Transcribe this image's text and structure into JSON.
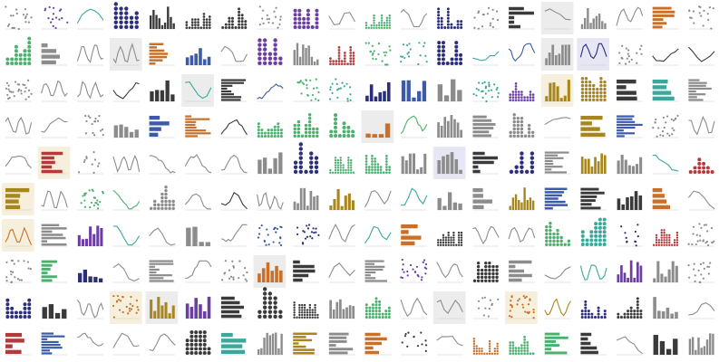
{
  "chart_data": {
    "type": "mosaic",
    "grid": {
      "rows": 10,
      "cols": 20
    },
    "palette": {
      "purple": "#6b3fa0",
      "green": "#4caf6e",
      "orange": "#c8702a",
      "blue": "#3b5aa8",
      "teal": "#3aa89a",
      "gray": "#8c8c8c",
      "dark": "#3a3a3a",
      "gold": "#a8861e",
      "red": "#b23a3a",
      "navy": "#2b2f7a",
      "cream": "#f6efdc",
      "lightgray": "#ececec",
      "lavender": "#e6e6f5"
    },
    "tiles": [
      {
        "type": "scatter",
        "color": "gray",
        "seed": 1
      },
      {
        "type": "scatter",
        "color": "purple",
        "seed": 2
      },
      {
        "type": "line",
        "color": "teal",
        "seed": 3
      },
      {
        "type": "dots",
        "color": "navy",
        "seed": 4
      },
      {
        "type": "bar",
        "color": "dark",
        "seed": 5
      },
      {
        "type": "dots",
        "color": "dark",
        "seed": 6
      },
      {
        "type": "dots",
        "color": "dark",
        "seed": 7
      },
      {
        "type": "scatter",
        "color": "gray",
        "seed": 8
      },
      {
        "type": "dots",
        "color": "purple",
        "seed": 9
      },
      {
        "type": "line",
        "color": "gray",
        "seed": 10
      },
      {
        "type": "dots",
        "color": "green",
        "seed": 11
      },
      {
        "type": "line",
        "color": "gray",
        "seed": 12
      },
      {
        "type": "dots",
        "color": "navy",
        "seed": 13
      },
      {
        "type": "scatter",
        "color": "gray",
        "seed": 14
      },
      {
        "type": "hbar",
        "color": "dark",
        "seed": 15
      },
      {
        "type": "line",
        "color": "gray",
        "seed": 16,
        "bg": "lightgray"
      },
      {
        "type": "bar",
        "color": "gray",
        "seed": 17
      },
      {
        "type": "line",
        "color": "gray",
        "seed": 18
      },
      {
        "type": "hbar",
        "color": "orange",
        "seed": 19
      },
      {
        "type": "scatter",
        "color": "gray",
        "seed": 20
      },
      {
        "type": "dots",
        "color": "green",
        "seed": 21
      },
      {
        "type": "hbar",
        "color": "gray",
        "seed": 22
      },
      {
        "type": "line",
        "color": "gray",
        "seed": 23
      },
      {
        "type": "line",
        "color": "gray",
        "seed": 24,
        "bg": "lightgray"
      },
      {
        "type": "hbar",
        "color": "orange",
        "seed": 25
      },
      {
        "type": "bar",
        "color": "blue",
        "seed": 26
      },
      {
        "type": "line",
        "color": "gray",
        "seed": 27
      },
      {
        "type": "dots",
        "color": "purple",
        "seed": 28
      },
      {
        "type": "bar",
        "color": "gray",
        "seed": 29
      },
      {
        "type": "dots",
        "color": "red",
        "seed": 30
      },
      {
        "type": "scatter",
        "color": "green",
        "seed": 31
      },
      {
        "type": "scatter",
        "color": "teal",
        "seed": 32
      },
      {
        "type": "dots",
        "color": "navy",
        "seed": 33
      },
      {
        "type": "line",
        "color": "teal",
        "seed": 34
      },
      {
        "type": "line",
        "color": "blue",
        "seed": 35
      },
      {
        "type": "bar",
        "color": "gray",
        "seed": 36,
        "bg": "lightgray"
      },
      {
        "type": "line",
        "color": "navy",
        "seed": 37,
        "bg": "lavender"
      },
      {
        "type": "scatter",
        "color": "gray",
        "seed": 38
      },
      {
        "type": "line",
        "color": "dark",
        "seed": 39
      },
      {
        "type": "line",
        "color": "dark",
        "seed": 40
      },
      {
        "type": "scatter",
        "color": "gray",
        "seed": 41
      },
      {
        "type": "line",
        "color": "gray",
        "seed": 42
      },
      {
        "type": "line",
        "color": "gray",
        "seed": 43
      },
      {
        "type": "line",
        "color": "dark",
        "seed": 44
      },
      {
        "type": "bar",
        "color": "dark",
        "seed": 45
      },
      {
        "type": "line",
        "color": "teal",
        "seed": 46,
        "bg": "lightgray"
      },
      {
        "type": "hbar",
        "color": "dark",
        "seed": 47
      },
      {
        "type": "line",
        "color": "blue",
        "seed": 48
      },
      {
        "type": "scatter",
        "color": "green",
        "seed": 49
      },
      {
        "type": "scatter",
        "color": "teal",
        "seed": 50
      },
      {
        "type": "bar",
        "color": "navy",
        "seed": 51
      },
      {
        "type": "bar",
        "color": "blue",
        "seed": 52
      },
      {
        "type": "bar",
        "color": "gray",
        "seed": 53
      },
      {
        "type": "scatter",
        "color": "teal",
        "seed": 54
      },
      {
        "type": "dots",
        "color": "purple",
        "seed": 55
      },
      {
        "type": "bar",
        "color": "gold",
        "seed": 56,
        "bg": "cream"
      },
      {
        "type": "dots",
        "color": "gold",
        "seed": 57
      },
      {
        "type": "hbar",
        "color": "dark",
        "seed": 58
      },
      {
        "type": "hbar",
        "color": "teal",
        "seed": 59
      },
      {
        "type": "hbar",
        "color": "gray",
        "seed": 60
      },
      {
        "type": "line",
        "color": "gray",
        "seed": 61
      },
      {
        "type": "line",
        "color": "gray",
        "seed": 62
      },
      {
        "type": "scatter",
        "color": "gray",
        "seed": 63
      },
      {
        "type": "bar",
        "color": "gray",
        "seed": 64
      },
      {
        "type": "hbar",
        "color": "blue",
        "seed": 65
      },
      {
        "type": "hbar",
        "color": "orange",
        "seed": 66
      },
      {
        "type": "line",
        "color": "dark",
        "seed": 67
      },
      {
        "type": "dots",
        "color": "green",
        "seed": 68
      },
      {
        "type": "dots",
        "color": "green",
        "seed": 69
      },
      {
        "type": "dots",
        "color": "green",
        "seed": 70
      },
      {
        "type": "bar",
        "color": "orange",
        "seed": 71,
        "bg": "lightgray"
      },
      {
        "type": "line",
        "color": "green",
        "seed": 72
      },
      {
        "type": "bar",
        "color": "gray",
        "seed": 73
      },
      {
        "type": "hbar",
        "color": "gray",
        "seed": 74
      },
      {
        "type": "dots",
        "color": "gray",
        "seed": 75
      },
      {
        "type": "line",
        "color": "gray",
        "seed": 76
      },
      {
        "type": "hbar",
        "color": "gold",
        "seed": 77
      },
      {
        "type": "hbar",
        "color": "blue",
        "seed": 78
      },
      {
        "type": "scatter",
        "color": "gray",
        "seed": 79
      },
      {
        "type": "line",
        "color": "gray",
        "seed": 80
      },
      {
        "type": "line",
        "color": "gray",
        "seed": 81
      },
      {
        "type": "hbar",
        "color": "red",
        "seed": 82,
        "bg": "cream"
      },
      {
        "type": "scatter",
        "color": "gray",
        "seed": 83
      },
      {
        "type": "line",
        "color": "gray",
        "seed": 84
      },
      {
        "type": "line",
        "color": "gray",
        "seed": 85
      },
      {
        "type": "line",
        "color": "gray",
        "seed": 86
      },
      {
        "type": "line",
        "color": "gray",
        "seed": 87
      },
      {
        "type": "bar",
        "color": "gray",
        "seed": 88
      },
      {
        "type": "dots",
        "color": "navy",
        "seed": 89
      },
      {
        "type": "dots",
        "color": "green",
        "seed": 90
      },
      {
        "type": "dots",
        "color": "green",
        "seed": 91
      },
      {
        "type": "bar",
        "color": "gray",
        "seed": 92
      },
      {
        "type": "bar",
        "color": "gray",
        "seed": 93,
        "bg": "lavender"
      },
      {
        "type": "hbar",
        "color": "dark",
        "seed": 94
      },
      {
        "type": "dots",
        "color": "navy",
        "seed": 95
      },
      {
        "type": "hbar",
        "color": "gray",
        "seed": 96
      },
      {
        "type": "bar",
        "color": "gold",
        "seed": 97
      },
      {
        "type": "bar",
        "color": "gray",
        "seed": 98
      },
      {
        "type": "line",
        "color": "teal",
        "seed": 99
      },
      {
        "type": "dots",
        "color": "red",
        "seed": 100
      },
      {
        "type": "hbar",
        "color": "gold",
        "seed": 101,
        "bg": "cream"
      },
      {
        "type": "line",
        "color": "gray",
        "seed": 102
      },
      {
        "type": "scatter",
        "color": "green",
        "seed": 103
      },
      {
        "type": "line",
        "color": "green",
        "seed": 104
      },
      {
        "type": "dots",
        "color": "gray",
        "seed": 105
      },
      {
        "type": "line",
        "color": "gray",
        "seed": 106
      },
      {
        "type": "line",
        "color": "dark",
        "seed": 107
      },
      {
        "type": "line",
        "color": "gray",
        "seed": 108
      },
      {
        "type": "bar",
        "color": "gray",
        "seed": 109
      },
      {
        "type": "bar",
        "color": "gold",
        "seed": 110
      },
      {
        "type": "line",
        "color": "gray",
        "seed": 111
      },
      {
        "type": "line",
        "color": "teal",
        "seed": 112
      },
      {
        "type": "bar",
        "color": "gray",
        "seed": 113
      },
      {
        "type": "hbar",
        "color": "gray",
        "seed": 114
      },
      {
        "type": "bar",
        "color": "gold",
        "seed": 115
      },
      {
        "type": "hbar",
        "color": "blue",
        "seed": 116
      },
      {
        "type": "hbar",
        "color": "dark",
        "seed": 117
      },
      {
        "type": "bar",
        "color": "dark",
        "seed": 118
      },
      {
        "type": "hbar",
        "color": "orange",
        "seed": 119
      },
      {
        "type": "line",
        "color": "gray",
        "seed": 120
      },
      {
        "type": "line",
        "color": "orange",
        "seed": 121,
        "bg": "cream"
      },
      {
        "type": "hbar",
        "color": "gray",
        "seed": 122
      },
      {
        "type": "bar",
        "color": "purple",
        "seed": 123
      },
      {
        "type": "line",
        "color": "teal",
        "seed": 124
      },
      {
        "type": "line",
        "color": "gray",
        "seed": 125
      },
      {
        "type": "bar",
        "color": "gray",
        "seed": 126
      },
      {
        "type": "line",
        "color": "gray",
        "seed": 127
      },
      {
        "type": "scatter",
        "color": "blue",
        "seed": 128
      },
      {
        "type": "scatter",
        "color": "navy",
        "seed": 129
      },
      {
        "type": "line",
        "color": "gray",
        "seed": 130
      },
      {
        "type": "line",
        "color": "teal",
        "seed": 131
      },
      {
        "type": "hbar",
        "color": "orange",
        "seed": 132
      },
      {
        "type": "dots",
        "color": "dark",
        "seed": 133
      },
      {
        "type": "line",
        "color": "gray",
        "seed": 134
      },
      {
        "type": "line",
        "color": "gray",
        "seed": 135
      },
      {
        "type": "dots",
        "color": "green",
        "seed": 136
      },
      {
        "type": "dots",
        "color": "teal",
        "seed": 137
      },
      {
        "type": "scatter",
        "color": "navy",
        "seed": 138
      },
      {
        "type": "dots",
        "color": "red",
        "seed": 139
      },
      {
        "type": "scatter",
        "color": "gray",
        "seed": 140
      },
      {
        "type": "scatter",
        "color": "gray",
        "seed": 141
      },
      {
        "type": "hbar",
        "color": "green",
        "seed": 142
      },
      {
        "type": "bar",
        "color": "navy",
        "seed": 143
      },
      {
        "type": "line",
        "color": "gray",
        "seed": 144
      },
      {
        "type": "hbar",
        "color": "gray",
        "seed": 145
      },
      {
        "type": "line",
        "color": "gray",
        "seed": 146
      },
      {
        "type": "scatter",
        "color": "gray",
        "seed": 147
      },
      {
        "type": "bar",
        "color": "orange",
        "seed": 148,
        "bg": "lightgray"
      },
      {
        "type": "hbar",
        "color": "dark",
        "seed": 149
      },
      {
        "type": "line",
        "color": "gray",
        "seed": 150
      },
      {
        "type": "hbar",
        "color": "gray",
        "seed": 151
      },
      {
        "type": "scatter",
        "color": "purple",
        "seed": 152
      },
      {
        "type": "line",
        "color": "gray",
        "seed": 153
      },
      {
        "type": "dots",
        "color": "dark",
        "seed": 154
      },
      {
        "type": "hbar",
        "color": "gray",
        "seed": 155
      },
      {
        "type": "line",
        "color": "gray",
        "seed": 156
      },
      {
        "type": "line",
        "color": "teal",
        "seed": 157
      },
      {
        "type": "bar",
        "color": "purple",
        "seed": 158
      },
      {
        "type": "bar",
        "color": "gray",
        "seed": 159
      },
      {
        "type": "scatter",
        "color": "gray",
        "seed": 160
      },
      {
        "type": "dots",
        "color": "navy",
        "seed": 161
      },
      {
        "type": "bar",
        "color": "dark",
        "seed": 162
      },
      {
        "type": "line",
        "color": "gray",
        "seed": 163
      },
      {
        "type": "scatter",
        "color": "orange",
        "seed": 164,
        "bg": "cream"
      },
      {
        "type": "bar",
        "color": "gold",
        "seed": 165,
        "bg": "lightgray"
      },
      {
        "type": "bar",
        "color": "purple",
        "seed": 166
      },
      {
        "type": "hbar",
        "color": "dark",
        "seed": 167
      },
      {
        "type": "dots",
        "color": "dark",
        "seed": 168
      },
      {
        "type": "dots",
        "color": "dark",
        "seed": 169
      },
      {
        "type": "bar",
        "color": "gray",
        "seed": 170
      },
      {
        "type": "dots",
        "color": "green",
        "seed": 171
      },
      {
        "type": "line",
        "color": "gray",
        "seed": 172
      },
      {
        "type": "line",
        "color": "gray",
        "seed": 173,
        "bg": "lightgray"
      },
      {
        "type": "scatter",
        "color": "gray",
        "seed": 174
      },
      {
        "type": "scatter",
        "color": "orange",
        "seed": 175,
        "bg": "cream"
      },
      {
        "type": "line",
        "color": "gold",
        "seed": 176
      },
      {
        "type": "dots",
        "color": "navy",
        "seed": 177
      },
      {
        "type": "dots",
        "color": "dark",
        "seed": 178
      },
      {
        "type": "bar",
        "color": "gray",
        "seed": 179
      },
      {
        "type": "line",
        "color": "gray",
        "seed": 180
      },
      {
        "type": "hbar",
        "color": "red",
        "seed": 181
      },
      {
        "type": "hbar",
        "color": "blue",
        "seed": 182
      },
      {
        "type": "line",
        "color": "gray",
        "seed": 183
      },
      {
        "type": "line",
        "color": "gray",
        "seed": 184
      },
      {
        "type": "line",
        "color": "gray",
        "seed": 185
      },
      {
        "type": "dots",
        "color": "dark",
        "seed": 186
      },
      {
        "type": "hbar",
        "color": "teal",
        "seed": 187
      },
      {
        "type": "bar",
        "color": "gray",
        "seed": 188
      },
      {
        "type": "hbar",
        "color": "gold",
        "seed": 189
      },
      {
        "type": "hbar",
        "color": "gray",
        "seed": 190
      },
      {
        "type": "hbar",
        "color": "orange",
        "seed": 191
      },
      {
        "type": "scatter",
        "color": "dark",
        "seed": 192
      },
      {
        "type": "line",
        "color": "gray",
        "seed": 193
      },
      {
        "type": "dots",
        "color": "orange",
        "seed": 194
      },
      {
        "type": "dots",
        "color": "green",
        "seed": 195
      },
      {
        "type": "hbar",
        "color": "green",
        "seed": 196
      },
      {
        "type": "hbar",
        "color": "dark",
        "seed": 197
      },
      {
        "type": "line",
        "color": "gray",
        "seed": 198
      },
      {
        "type": "bar",
        "color": "dark",
        "seed": 199
      },
      {
        "type": "bar",
        "color": "gray",
        "seed": 200
      }
    ]
  }
}
